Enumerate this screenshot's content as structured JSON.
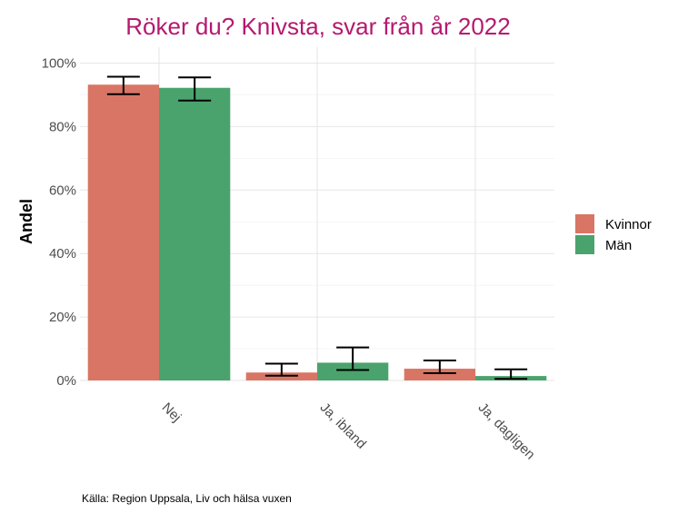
{
  "chart_data": {
    "type": "bar",
    "title": "Röker du? Knivsta, svar från år 2022",
    "title_color": "#b5196e",
    "xlabel": "",
    "ylabel": "Andel",
    "categories": [
      "Nej",
      "Ja, ibland",
      "Ja, dagligen"
    ],
    "ylim": [
      0,
      1.05
    ],
    "yticks": [
      0,
      0.2,
      0.4,
      0.6,
      0.8,
      1.0
    ],
    "ytick_labels": [
      "0%",
      "20%",
      "40%",
      "60%",
      "80%",
      "100%"
    ],
    "grid": true,
    "legend_position": "right",
    "series": [
      {
        "name": "Kvinnor",
        "color": "#d97565",
        "values": [
          0.932,
          0.025,
          0.037
        ],
        "err_low": [
          0.902,
          0.015,
          0.023
        ],
        "err_high": [
          0.957,
          0.053,
          0.063
        ]
      },
      {
        "name": "Män",
        "color": "#4aa36c",
        "values": [
          0.922,
          0.056,
          0.014
        ],
        "err_low": [
          0.882,
          0.033,
          0.005
        ],
        "err_high": [
          0.955,
          0.104,
          0.035
        ]
      }
    ],
    "caption": "Källa: Region Uppsala, Liv och hälsa vuxen"
  }
}
